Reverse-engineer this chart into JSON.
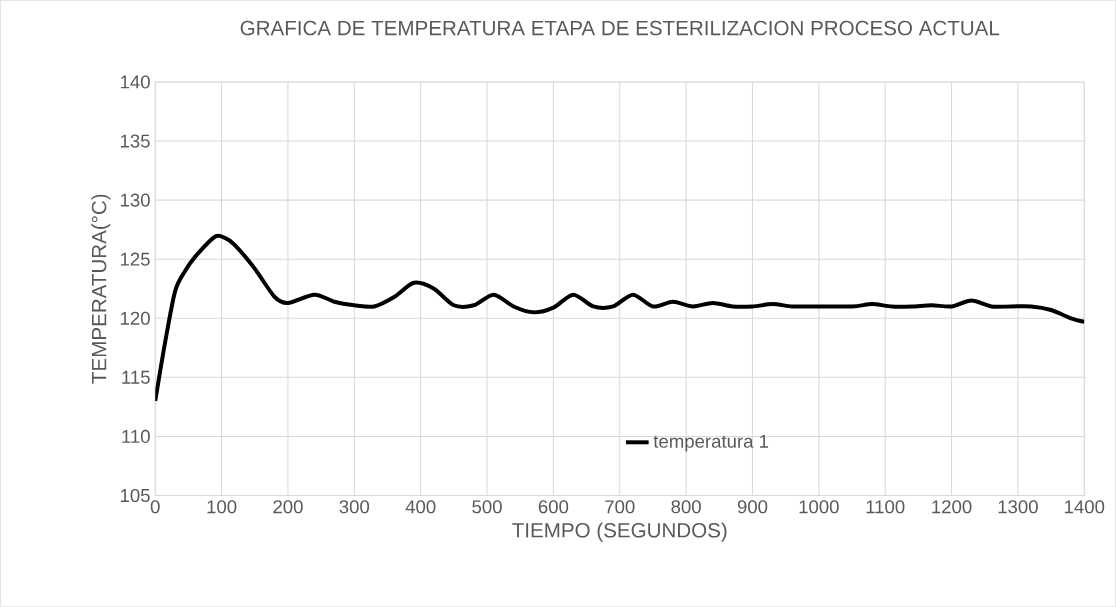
{
  "chart_data": {
    "type": "line",
    "title": "GRAFICA DE TEMPERATURA ETAPA DE ESTERILIZACION PROCESO  ACTUAL",
    "xlabel": "TIEMPO (SEGUNDOS)",
    "ylabel": "TEMPERATURA(°C)",
    "x": [
      0,
      15,
      30,
      45,
      60,
      90,
      105,
      120,
      150,
      180,
      200,
      240,
      270,
      300,
      330,
      360,
      390,
      420,
      450,
      480,
      510,
      540,
      570,
      600,
      630,
      660,
      690,
      720,
      750,
      780,
      810,
      840,
      870,
      900,
      930,
      960,
      990,
      1050,
      1080,
      1110,
      1140,
      1170,
      1200,
      1230,
      1260,
      1290,
      1320,
      1350,
      1380,
      1400
    ],
    "series": [
      {
        "name": "temperatura 1",
        "color": "#000000",
        "values": [
          113,
          118,
          122.3,
          124,
          125.2,
          126.9,
          126.8,
          126.2,
          124.2,
          121.8,
          121.3,
          122,
          121.4,
          121.1,
          121,
          121.8,
          123,
          122.5,
          121.1,
          121.1,
          122,
          121,
          120.5,
          120.9,
          122,
          121,
          121,
          122,
          121,
          121.4,
          121,
          121.3,
          121,
          121,
          121.2,
          121,
          121,
          121,
          121.2,
          121,
          121,
          121.1,
          121,
          121.5,
          121,
          121,
          121,
          120.7,
          120,
          119.7
        ]
      }
    ],
    "xlim": [
      0,
      1400
    ],
    "xticks": [
      0,
      100,
      200,
      300,
      400,
      500,
      600,
      700,
      800,
      900,
      1000,
      1100,
      1200,
      1300,
      1400
    ],
    "ylim": [
      105,
      140
    ],
    "yticks": [
      105,
      110,
      115,
      120,
      125,
      130,
      135,
      140
    ],
    "grid": true,
    "legend": "bottom",
    "marker": "none",
    "line_style": "solid"
  }
}
